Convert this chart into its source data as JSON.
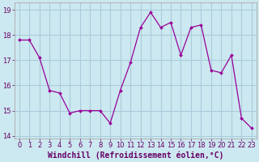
{
  "x": [
    0,
    1,
    2,
    3,
    4,
    5,
    6,
    7,
    8,
    9,
    10,
    11,
    12,
    13,
    14,
    15,
    16,
    17,
    18,
    19,
    20,
    21,
    22,
    23
  ],
  "y": [
    17.8,
    17.8,
    17.1,
    15.8,
    15.7,
    14.9,
    15.0,
    15.0,
    15.0,
    14.5,
    15.8,
    16.9,
    18.3,
    18.9,
    18.3,
    18.5,
    17.2,
    18.3,
    18.4,
    16.6,
    16.5,
    17.2,
    14.7,
    14.3
  ],
  "line_color": "#990099",
  "marker": "D",
  "marker_size": 2,
  "bg_color": "#cce8f0",
  "grid_color": "#aaccdd",
  "xlabel": "Windchill (Refroidissement éolien,°C)",
  "text_color": "#660066",
  "ylim": [
    13.9,
    19.3
  ],
  "xlim": [
    -0.5,
    23.5
  ],
  "yticks": [
    14,
    15,
    16,
    17,
    18,
    19
  ],
  "xticks": [
    0,
    1,
    2,
    3,
    4,
    5,
    6,
    7,
    8,
    9,
    10,
    11,
    12,
    13,
    14,
    15,
    16,
    17,
    18,
    19,
    20,
    21,
    22,
    23
  ],
  "tick_fontsize": 6,
  "xlabel_fontsize": 7
}
